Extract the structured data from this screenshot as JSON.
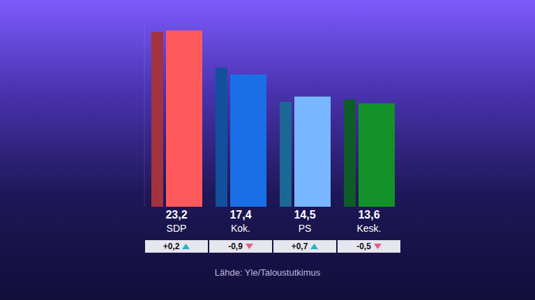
{
  "chart_data": {
    "type": "bar",
    "categories": [
      "SDP",
      "Kok.",
      "PS",
      "Kesk."
    ],
    "values": [
      23.2,
      17.4,
      14.5,
      13.6
    ],
    "value_labels": [
      "23,2",
      "17,4",
      "14,5",
      "13,6"
    ],
    "previous": [
      23.0,
      18.3,
      13.8,
      14.1
    ],
    "change": [
      0.2,
      -0.9,
      0.7,
      -0.5
    ],
    "change_labels": [
      "+0,2",
      "-0,9",
      "+0,7",
      "-0,5"
    ],
    "colors": [
      "#ff5a5c",
      "#1a6fe6",
      "#78b6ff",
      "#129228"
    ],
    "previous_colors": [
      "#a3323f",
      "#12509e",
      "#1b6896",
      "#0e5c28"
    ],
    "source": "Lähde: Yle/Taloustutkimus",
    "ylim": [
      0,
      24
    ],
    "grid": false,
    "tick_labels": false,
    "data_labels": true
  }
}
